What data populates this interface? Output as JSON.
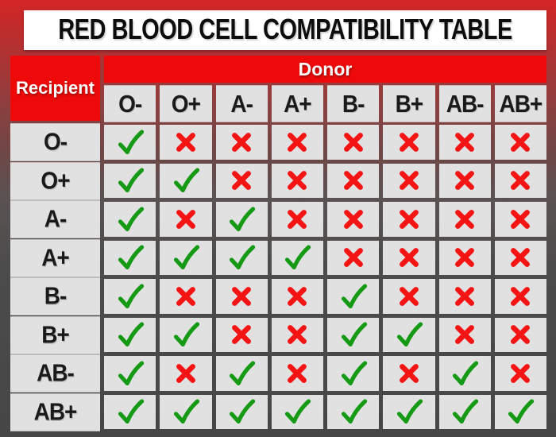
{
  "title": "RED BLOOD CELL COMPATIBILITY TABLE",
  "table": {
    "donor_label": "Donor",
    "recipient_label": "Recipient",
    "donor_types": [
      "O-",
      "O+",
      "A-",
      "A+",
      "B-",
      "B+",
      "AB-",
      "AB+"
    ],
    "recipient_types": [
      "O-",
      "O+",
      "A-",
      "A+",
      "B-",
      "B+",
      "AB-",
      "AB+"
    ],
    "compatibility": [
      [
        true,
        false,
        false,
        false,
        false,
        false,
        false,
        false
      ],
      [
        true,
        true,
        false,
        false,
        false,
        false,
        false,
        false
      ],
      [
        true,
        false,
        true,
        false,
        false,
        false,
        false,
        false
      ],
      [
        true,
        true,
        true,
        true,
        false,
        false,
        false,
        false
      ],
      [
        true,
        false,
        false,
        false,
        true,
        false,
        false,
        false
      ],
      [
        true,
        true,
        false,
        false,
        true,
        true,
        false,
        false
      ],
      [
        true,
        false,
        true,
        false,
        true,
        false,
        true,
        false
      ],
      [
        true,
        true,
        true,
        true,
        true,
        true,
        true,
        true
      ]
    ]
  },
  "icons": {
    "compatible": "check-icon",
    "incompatible": "cross-icon"
  },
  "colors": {
    "accent_red": "#ee0a0a",
    "cell_gray": "#e1e1e1",
    "check_green": "#169a16",
    "cross_red": "#f51414",
    "title_bg": "#ffffff",
    "frame_top_red": "#d32525",
    "frame_bottom_gray": "#464646"
  }
}
